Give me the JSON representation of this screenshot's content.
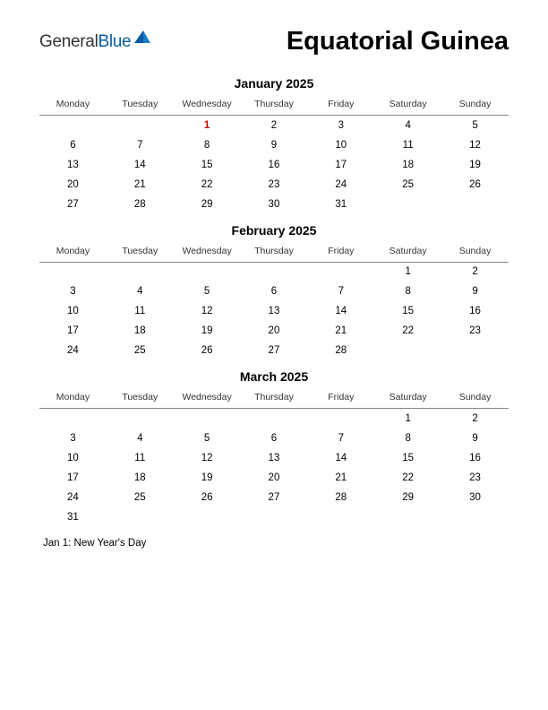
{
  "brand": {
    "name_part1": "General",
    "name_part2": "Blue",
    "icon_color_1": "#0b5aa3",
    "icon_color_2": "#1a7fc9"
  },
  "title": "Equatorial Guinea",
  "colors": {
    "background": "#ffffff",
    "text": "#000000",
    "holiday": "#cc0000",
    "header_border": "#888888"
  },
  "typography": {
    "title_fontsize": 29,
    "month_fontsize": 14,
    "dayhead_fontsize": 10.5,
    "cell_fontsize": 11.5
  },
  "day_headers": [
    "Monday",
    "Tuesday",
    "Wednesday",
    "Thursday",
    "Friday",
    "Saturday",
    "Sunday"
  ],
  "months": [
    {
      "title": "January 2025",
      "weeks": [
        [
          "",
          "",
          "1",
          "2",
          "3",
          "4",
          "5"
        ],
        [
          "6",
          "7",
          "8",
          "9",
          "10",
          "11",
          "12"
        ],
        [
          "13",
          "14",
          "15",
          "16",
          "17",
          "18",
          "19"
        ],
        [
          "20",
          "21",
          "22",
          "23",
          "24",
          "25",
          "26"
        ],
        [
          "27",
          "28",
          "29",
          "30",
          "31",
          "",
          ""
        ]
      ],
      "holidays": [
        [
          0,
          2
        ]
      ]
    },
    {
      "title": "February 2025",
      "weeks": [
        [
          "",
          "",
          "",
          "",
          "",
          "1",
          "2"
        ],
        [
          "3",
          "4",
          "5",
          "6",
          "7",
          "8",
          "9"
        ],
        [
          "10",
          "11",
          "12",
          "13",
          "14",
          "15",
          "16"
        ],
        [
          "17",
          "18",
          "19",
          "20",
          "21",
          "22",
          "23"
        ],
        [
          "24",
          "25",
          "26",
          "27",
          "28",
          "",
          ""
        ]
      ],
      "holidays": []
    },
    {
      "title": "March 2025",
      "weeks": [
        [
          "",
          "",
          "",
          "",
          "",
          "1",
          "2"
        ],
        [
          "3",
          "4",
          "5",
          "6",
          "7",
          "8",
          "9"
        ],
        [
          "10",
          "11",
          "12",
          "13",
          "14",
          "15",
          "16"
        ],
        [
          "17",
          "18",
          "19",
          "20",
          "21",
          "22",
          "23"
        ],
        [
          "24",
          "25",
          "26",
          "27",
          "28",
          "29",
          "30"
        ],
        [
          "31",
          "",
          "",
          "",
          "",
          "",
          ""
        ]
      ],
      "holidays": []
    }
  ],
  "holiday_notes": [
    "Jan 1: New Year's Day"
  ]
}
